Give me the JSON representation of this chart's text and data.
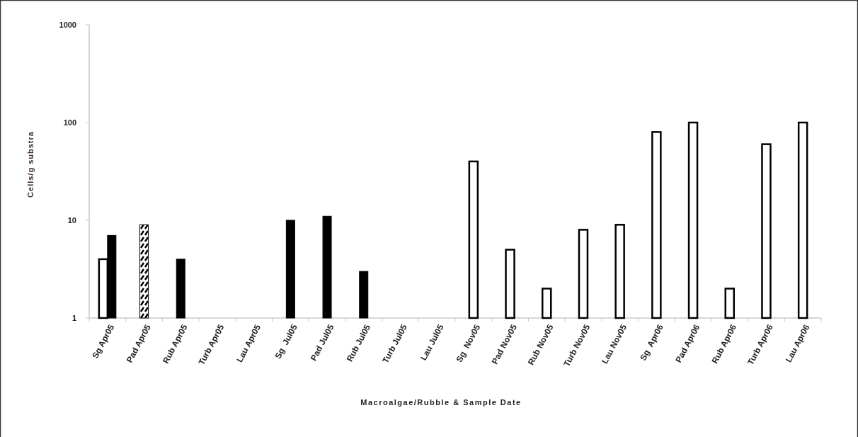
{
  "chart_data": {
    "type": "bar",
    "xlabel": "Macroalgae/Rubble & Sample Date",
    "ylabel": "Cells/g substra",
    "categories": [
      "Sg Apr05",
      "Pad Apr05",
      "Rub Apr05",
      "Turb Apr05",
      "Lau Apr05",
      "Sg  Jul05",
      "Pad Jul05",
      "Rub Jul05",
      "Turb Jul05",
      "Lau Jul05",
      "Sg  Nov05",
      "Pad Nov05",
      "Rub Nov05",
      "Turb Nov05",
      "Lau Nov05",
      "Sg  Apr06",
      "Pad Apr06",
      "Rub Apr06",
      "Turb Apr06",
      "Lau Apr06"
    ],
    "series": [
      {
        "color": "#ffffff",
        "values": [
          4,
          null,
          null,
          null,
          null,
          null,
          null,
          null,
          null,
          null,
          40,
          5,
          2,
          8,
          9,
          80,
          100,
          2,
          60,
          100
        ]
      },
      {
        "color": "#000000",
        "values": [
          7,
          null,
          4,
          null,
          null,
          10,
          11,
          3,
          null,
          null,
          null,
          null,
          null,
          null,
          null,
          null,
          null,
          null,
          null,
          null
        ]
      },
      {
        "color": "#000000",
        "values": [
          null,
          9,
          null,
          null,
          null,
          null,
          null,
          null,
          null,
          null,
          null,
          null,
          null,
          null,
          null,
          null,
          null,
          null,
          null,
          null
        ]
      }
    ],
    "log": true,
    "ylim": [
      1,
      1000
    ],
    "yticks": [
      1,
      10,
      100,
      1000
    ],
    "grid": false
  }
}
